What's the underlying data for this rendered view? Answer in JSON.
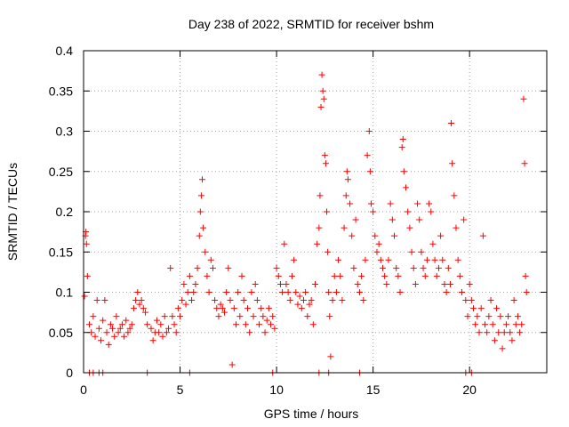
{
  "chart_data": {
    "type": "scatter",
    "title": "Day 238 of 2022, SRMTID for receiver bshm",
    "xlabel": "GPS time / hours",
    "ylabel": "SRMTID / TECUs",
    "xlim": [
      0,
      24
    ],
    "ylim": [
      0,
      0.4
    ],
    "grid": true,
    "xticks": [
      0,
      5,
      10,
      15,
      20
    ],
    "xtick_labels": [
      "0",
      "5",
      "10",
      "15",
      "20"
    ],
    "yticks": [
      0,
      0.05,
      0.1,
      0.15,
      0.2,
      0.25,
      0.3,
      0.35,
      0.4
    ],
    "ytick_labels": [
      "0",
      "0.05",
      "0.1",
      "0.15",
      "0.2",
      "0.25",
      "0.3",
      "0.35",
      "0.4"
    ],
    "marker": "+",
    "color": "#ff0000",
    "series": [
      {
        "name": "SRMTID",
        "points": [
          [
            0.05,
            0.095
          ],
          [
            0.1,
            0.17
          ],
          [
            0.12,
            0.175
          ],
          [
            0.15,
            0.16
          ],
          [
            0.2,
            0.12
          ],
          [
            0.3,
            0.06
          ],
          [
            0.4,
            0.05
          ],
          [
            0.5,
            0.07
          ],
          [
            0.6,
            0.045
          ],
          [
            0.7,
            0.09
          ],
          [
            0.8,
            0.055
          ],
          [
            0.9,
            0.04
          ],
          [
            1.0,
            0.065
          ],
          [
            1.1,
            0.09
          ],
          [
            1.2,
            0.05
          ],
          [
            1.3,
            0.035
          ],
          [
            1.4,
            0.06
          ],
          [
            1.5,
            0.055
          ],
          [
            1.6,
            0.045
          ],
          [
            1.7,
            0.07
          ],
          [
            1.8,
            0.05
          ],
          [
            1.9,
            0.055
          ],
          [
            2.0,
            0.06
          ],
          [
            2.1,
            0.045
          ],
          [
            2.2,
            0.065
          ],
          [
            2.3,
            0.05
          ],
          [
            2.4,
            0.055
          ],
          [
            2.5,
            0.06
          ],
          [
            2.6,
            0.08
          ],
          [
            2.7,
            0.09
          ],
          [
            2.8,
            0.1
          ],
          [
            2.9,
            0.085
          ],
          [
            3.0,
            0.09
          ],
          [
            3.1,
            0.08
          ],
          [
            3.2,
            0.075
          ],
          [
            3.3,
            0.06
          ],
          [
            3.5,
            0.055
          ],
          [
            3.6,
            0.04
          ],
          [
            3.7,
            0.05
          ],
          [
            3.8,
            0.065
          ],
          [
            3.9,
            0.05
          ],
          [
            4.0,
            0.06
          ],
          [
            4.1,
            0.045
          ],
          [
            4.2,
            0.07
          ],
          [
            4.3,
            0.05
          ],
          [
            4.4,
            0.055
          ],
          [
            4.5,
            0.13
          ],
          [
            4.6,
            0.07
          ],
          [
            4.7,
            0.06
          ],
          [
            4.8,
            0.05
          ],
          [
            4.9,
            0.08
          ],
          [
            5.0,
            0.07
          ],
          [
            5.1,
            0.09
          ],
          [
            5.2,
            0.11
          ],
          [
            5.3,
            0.085
          ],
          [
            5.4,
            0.1
          ],
          [
            5.5,
            0.12
          ],
          [
            5.6,
            0.09
          ],
          [
            5.7,
            0.1
          ],
          [
            5.8,
            0.11
          ],
          [
            5.9,
            0.13
          ],
          [
            6.0,
            0.17
          ],
          [
            6.05,
            0.2
          ],
          [
            6.1,
            0.22
          ],
          [
            6.15,
            0.24
          ],
          [
            6.2,
            0.18
          ],
          [
            6.3,
            0.15
          ],
          [
            6.4,
            0.12
          ],
          [
            6.5,
            0.1
          ],
          [
            6.6,
            0.14
          ],
          [
            6.7,
            0.13
          ],
          [
            6.8,
            0.09
          ],
          [
            6.9,
            0.08
          ],
          [
            7.0,
            0.07
          ],
          [
            7.1,
            0.085
          ],
          [
            7.2,
            0.08
          ],
          [
            7.3,
            0.075
          ],
          [
            7.4,
            0.1
          ],
          [
            7.5,
            0.13
          ],
          [
            7.6,
            0.09
          ],
          [
            7.7,
            0.01
          ],
          [
            7.8,
            0.08
          ],
          [
            7.9,
            0.06
          ],
          [
            8.0,
            0.1
          ],
          [
            8.1,
            0.07
          ],
          [
            8.2,
            0.12
          ],
          [
            8.3,
            0.09
          ],
          [
            8.4,
            0.06
          ],
          [
            8.5,
            0.08
          ],
          [
            8.6,
            0.05
          ],
          [
            8.7,
            0.1
          ],
          [
            8.8,
            0.07
          ],
          [
            8.9,
            0.11
          ],
          [
            9.0,
            0.09
          ],
          [
            9.1,
            0.06
          ],
          [
            9.2,
            0.08
          ],
          [
            9.3,
            0.07
          ],
          [
            9.4,
            0.05
          ],
          [
            9.5,
            0.065
          ],
          [
            9.6,
            0.08
          ],
          [
            9.7,
            0.06
          ],
          [
            9.8,
            0.07
          ],
          [
            9.9,
            0.055
          ],
          [
            10.0,
            0.13
          ],
          [
            10.1,
            0.12
          ],
          [
            10.2,
            0.11
          ],
          [
            10.3,
            0.1
          ],
          [
            10.4,
            0.16
          ],
          [
            10.5,
            0.11
          ],
          [
            10.6,
            0.1
          ],
          [
            10.7,
            0.09
          ],
          [
            10.8,
            0.12
          ],
          [
            10.9,
            0.14
          ],
          [
            11.0,
            0.1
          ],
          [
            11.1,
            0.085
          ],
          [
            11.2,
            0.095
          ],
          [
            11.3,
            0.08
          ],
          [
            11.4,
            0.09
          ],
          [
            11.5,
            0.1
          ],
          [
            11.6,
            0.07
          ],
          [
            11.7,
            0.085
          ],
          [
            11.8,
            0.09
          ],
          [
            11.9,
            0.06
          ],
          [
            12.0,
            0.11
          ],
          [
            12.1,
            0.16
          ],
          [
            12.2,
            0.18
          ],
          [
            12.25,
            0.22
          ],
          [
            12.3,
            0.33
          ],
          [
            12.35,
            0.37
          ],
          [
            12.4,
            0.35
          ],
          [
            12.45,
            0.34
          ],
          [
            12.5,
            0.27
          ],
          [
            12.55,
            0.26
          ],
          [
            12.6,
            0.2
          ],
          [
            12.65,
            0.15
          ],
          [
            12.7,
            0.1
          ],
          [
            12.75,
            0.07
          ],
          [
            12.8,
            0.02
          ],
          [
            12.9,
            0.09
          ],
          [
            13.0,
            0.12
          ],
          [
            13.1,
            0.1
          ],
          [
            13.2,
            0.14
          ],
          [
            13.3,
            0.12
          ],
          [
            13.4,
            0.09
          ],
          [
            13.5,
            0.18
          ],
          [
            13.6,
            0.22
          ],
          [
            13.65,
            0.25
          ],
          [
            13.7,
            0.24
          ],
          [
            13.8,
            0.21
          ],
          [
            13.9,
            0.17
          ],
          [
            14.0,
            0.13
          ],
          [
            14.1,
            0.19
          ],
          [
            14.2,
            0.11
          ],
          [
            14.3,
            0.1
          ],
          [
            14.4,
            0.12
          ],
          [
            14.5,
            0.09
          ],
          [
            14.6,
            0.14
          ],
          [
            14.7,
            0.27
          ],
          [
            14.8,
            0.3
          ],
          [
            14.85,
            0.25
          ],
          [
            14.9,
            0.21
          ],
          [
            15.0,
            0.2
          ],
          [
            15.1,
            0.17
          ],
          [
            15.2,
            0.15
          ],
          [
            15.3,
            0.16
          ],
          [
            15.4,
            0.14
          ],
          [
            15.5,
            0.13
          ],
          [
            15.6,
            0.12
          ],
          [
            15.7,
            0.11
          ],
          [
            15.8,
            0.14
          ],
          [
            15.9,
            0.21
          ],
          [
            16.0,
            0.19
          ],
          [
            16.1,
            0.17
          ],
          [
            16.2,
            0.13
          ],
          [
            16.3,
            0.12
          ],
          [
            16.4,
            0.1
          ],
          [
            16.5,
            0.28
          ],
          [
            16.55,
            0.29
          ],
          [
            16.6,
            0.25
          ],
          [
            16.7,
            0.23
          ],
          [
            16.8,
            0.2
          ],
          [
            16.9,
            0.18
          ],
          [
            17.0,
            0.15
          ],
          [
            17.1,
            0.13
          ],
          [
            17.2,
            0.11
          ],
          [
            17.3,
            0.21
          ],
          [
            17.4,
            0.19
          ],
          [
            17.5,
            0.15
          ],
          [
            17.6,
            0.13
          ],
          [
            17.7,
            0.12
          ],
          [
            17.8,
            0.14
          ],
          [
            17.9,
            0.21
          ],
          [
            18.0,
            0.2
          ],
          [
            18.1,
            0.16
          ],
          [
            18.2,
            0.14
          ],
          [
            18.3,
            0.12
          ],
          [
            18.4,
            0.13
          ],
          [
            18.5,
            0.17
          ],
          [
            18.6,
            0.14
          ],
          [
            18.7,
            0.11
          ],
          [
            18.8,
            0.1
          ],
          [
            18.9,
            0.13
          ],
          [
            19.0,
            0.11
          ],
          [
            19.05,
            0.31
          ],
          [
            19.1,
            0.26
          ],
          [
            19.2,
            0.22
          ],
          [
            19.3,
            0.18
          ],
          [
            19.4,
            0.14
          ],
          [
            19.5,
            0.12
          ],
          [
            19.6,
            0.1
          ],
          [
            19.7,
            0.19
          ],
          [
            19.8,
            0.09
          ],
          [
            19.9,
            0.07
          ],
          [
            20.0,
            0.11
          ],
          [
            20.1,
            0.09
          ],
          [
            20.2,
            0.08
          ],
          [
            20.3,
            0.06
          ],
          [
            20.4,
            0.07
          ],
          [
            20.5,
            0.05
          ],
          [
            20.6,
            0.08
          ],
          [
            20.7,
            0.17
          ],
          [
            20.8,
            0.06
          ],
          [
            20.9,
            0.05
          ],
          [
            21.0,
            0.07
          ],
          [
            21.1,
            0.09
          ],
          [
            21.2,
            0.06
          ],
          [
            21.3,
            0.04
          ],
          [
            21.4,
            0.08
          ],
          [
            21.5,
            0.05
          ],
          [
            21.6,
            0.07
          ],
          [
            21.7,
            0.03
          ],
          [
            21.8,
            0.05
          ],
          [
            21.9,
            0.06
          ],
          [
            22.0,
            0.07
          ],
          [
            22.1,
            0.05
          ],
          [
            22.2,
            0.04
          ],
          [
            22.3,
            0.09
          ],
          [
            22.4,
            0.06
          ],
          [
            22.5,
            0.07
          ],
          [
            22.6,
            0.05
          ],
          [
            22.7,
            0.06
          ],
          [
            22.8,
            0.34
          ],
          [
            22.85,
            0.26
          ],
          [
            22.9,
            0.12
          ],
          [
            22.95,
            0.1
          ],
          [
            0.3,
            0
          ],
          [
            0.5,
            0
          ],
          [
            0.8,
            0
          ],
          [
            1.0,
            0
          ],
          [
            3.3,
            0
          ],
          [
            5.5,
            0
          ],
          [
            9.8,
            0
          ],
          [
            12.2,
            0
          ],
          [
            12.7,
            0
          ],
          [
            14.3,
            0
          ],
          [
            19.8,
            0
          ],
          [
            20.1,
            0
          ]
        ]
      }
    ]
  }
}
